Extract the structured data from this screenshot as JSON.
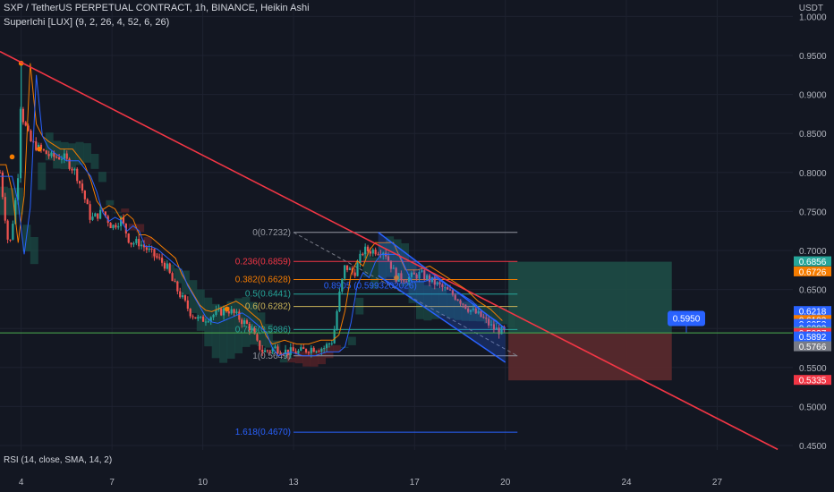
{
  "header": {
    "title": "SXP / TetherUS PERPETUAL CONTRACT, 1h, BINANCE, Heikin Ashi",
    "indicator": "SuperIchi [LUX] (9, 2, 26, 4, 52, 6, 26)",
    "currency": "USDT"
  },
  "rsi_label": "RSI (14, close, SMA, 14, 2)",
  "colors": {
    "background": "#131722",
    "bull": "#26a69a",
    "bear": "#ef5350",
    "trendline": "#f23645",
    "fib_blue": "#2962ff",
    "cloud_green": "#1b4a44",
    "cloud_red": "#5a2328",
    "current_line": "#4caf50"
  },
  "chart_data": {
    "type": "candlestick",
    "y_axis": {
      "ylim": [
        0.4,
        1.0
      ],
      "ticks": [
        "0.4500",
        "0.5000",
        "0.5500",
        "0.6000",
        "0.6500",
        "0.7000",
        "0.7500",
        "0.8000",
        "0.8500",
        "0.9000",
        "0.9500",
        "1.0000"
      ]
    },
    "x_axis": {
      "ticks": [
        "4",
        "7",
        "10",
        "13",
        "17",
        "20",
        "24",
        "27"
      ],
      "tick_days": [
        4,
        7,
        10,
        13,
        17,
        20,
        24,
        27
      ],
      "xlim": [
        3.3,
        29.5
      ]
    },
    "fibonacci": [
      {
        "label": "0(0.7232)",
        "value": 0.7232
      },
      {
        "label": "0.236(0.6859)",
        "value": 0.6859
      },
      {
        "label": "0.382(0.6628)",
        "value": 0.6628
      },
      {
        "label": "0.5(0.6441)",
        "value": 0.6441
      },
      {
        "label": "0.6(0.6282)",
        "value": 0.6282
      },
      {
        "label": "0.786(0.5986)",
        "value": 0.5986
      },
      {
        "label": "1(0.5649)",
        "value": 0.5649
      },
      {
        "label": "1.618(0.4670)",
        "value": 0.467
      }
    ],
    "fib_overlay_text": "0.8905 (0.5993202026)",
    "trendline": {
      "from": [
        3.3,
        0.955
      ],
      "to": [
        29.0,
        0.445
      ]
    },
    "channel": {
      "upper": [
        [
          15.8,
          0.7232
        ],
        [
          20.0,
          0.6
        ]
      ],
      "lower": [
        [
          15.8,
          0.6677
        ],
        [
          20.0,
          0.5567
        ]
      ]
    },
    "position": {
      "entry": 0.5937,
      "target": 0.6856,
      "stop": 0.5335,
      "x_start": 20.1,
      "x_end": 25.5
    },
    "price_tags": [
      {
        "value": 0.6856,
        "label": "0.6856",
        "color": "#26a69a"
      },
      {
        "value": 0.6726,
        "label": "0.6726",
        "color": "#f57c00"
      },
      {
        "value": 0.6218,
        "label": "0.6218",
        "color": "#2962ff"
      },
      {
        "value": 0.6103,
        "label": "0.6103",
        "color": "#f57c00"
      },
      {
        "value": 0.6053,
        "label": "0.6053",
        "color": "#2962ff"
      },
      {
        "value": 0.6003,
        "label": "0.6003",
        "color": "#2962ff"
      },
      {
        "value": 0.595,
        "label": "0.5950",
        "color": "#4caf50"
      },
      {
        "value": 0.5944,
        "label": "0.5944",
        "sublabel": "39:23",
        "color": "#26a69a"
      },
      {
        "value": 0.5937,
        "label": "0.5937",
        "color": "#f23645"
      },
      {
        "value": 0.5892,
        "label": "0.5892",
        "color": "#2962ff"
      },
      {
        "value": 0.5766,
        "label": "0.5766",
        "color": "#787b86"
      },
      {
        "value": 0.5335,
        "label": "0.5335",
        "color": "#f23645"
      }
    ],
    "alert": {
      "label": "0.5950",
      "value": 0.595
    },
    "current_price": 0.5944,
    "price_anchors": [
      [
        3.3,
        0.8
      ],
      [
        3.6,
        0.7
      ],
      [
        3.8,
        0.76
      ],
      [
        3.95,
        0.82
      ],
      [
        4.0,
        0.93
      ],
      [
        4.05,
        0.87
      ],
      [
        4.3,
        0.84
      ],
      [
        4.6,
        0.83
      ],
      [
        5.0,
        0.82
      ],
      [
        5.4,
        0.82
      ],
      [
        5.8,
        0.8
      ],
      [
        6.0,
        0.78
      ],
      [
        6.3,
        0.74
      ],
      [
        6.7,
        0.75
      ],
      [
        7.0,
        0.73
      ],
      [
        7.3,
        0.74
      ],
      [
        7.6,
        0.71
      ],
      [
        7.9,
        0.71
      ],
      [
        8.2,
        0.7
      ],
      [
        8.5,
        0.69
      ],
      [
        8.8,
        0.68
      ],
      [
        9.0,
        0.66
      ],
      [
        9.3,
        0.64
      ],
      [
        9.6,
        0.62
      ],
      [
        9.9,
        0.61
      ],
      [
        10.2,
        0.615
      ],
      [
        10.5,
        0.62
      ],
      [
        10.8,
        0.625
      ],
      [
        11.0,
        0.62
      ],
      [
        11.3,
        0.61
      ],
      [
        11.6,
        0.6
      ],
      [
        11.8,
        0.58
      ],
      [
        12.0,
        0.57
      ],
      [
        12.4,
        0.575
      ],
      [
        12.8,
        0.57
      ],
      [
        13.2,
        0.57
      ],
      [
        13.6,
        0.575
      ],
      [
        14.0,
        0.575
      ],
      [
        14.3,
        0.585
      ],
      [
        14.5,
        0.64
      ],
      [
        14.7,
        0.68
      ],
      [
        15.0,
        0.67
      ],
      [
        15.3,
        0.7
      ],
      [
        15.6,
        0.7
      ],
      [
        16.0,
        0.7
      ],
      [
        16.4,
        0.665
      ],
      [
        16.8,
        0.665
      ],
      [
        17.2,
        0.67
      ],
      [
        17.6,
        0.66
      ],
      [
        18.0,
        0.65
      ],
      [
        18.4,
        0.64
      ],
      [
        18.8,
        0.625
      ],
      [
        19.2,
        0.615
      ],
      [
        19.6,
        0.6
      ],
      [
        20.0,
        0.595
      ]
    ]
  }
}
